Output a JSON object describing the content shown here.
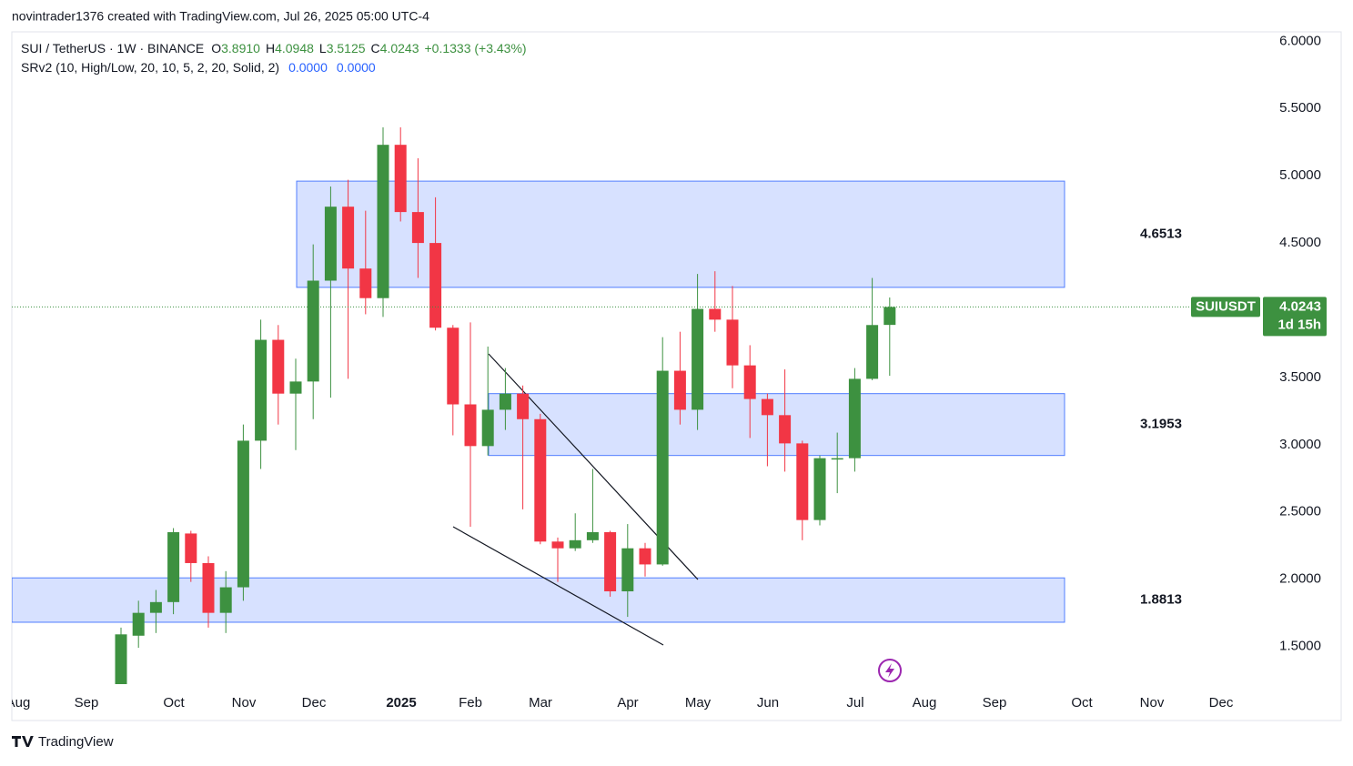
{
  "header": {
    "credit": "novintrader1376 created with TradingView.com, Jul 26, 2025 05:00 UTC-4",
    "symbol": "SUI / TetherUS · 1W · BINANCE",
    "ohlc_labels": [
      "O",
      "H",
      "L",
      "C"
    ],
    "ohlc_values": [
      "3.8910",
      "4.0948",
      "3.5125",
      "4.0243"
    ],
    "change": "+0.1333 (+3.43%)",
    "indicator": "SRv2 (10, High/Low, 20, 10, 5, 2, 20, Solid, 2)",
    "indicator_values": [
      "0.0000",
      "0.0000"
    ]
  },
  "footer": "TradingView",
  "chart_data": {
    "type": "candlestick",
    "symbol_tag": "SUIUSDT",
    "countdown": "1d 15h",
    "up_color": "#3d9140",
    "down_color": "#f23645",
    "zone_color": "#2962ff",
    "ylim": [
      1.22,
      6.07
    ],
    "yticks": [
      {
        "value": 1.5,
        "label": "1.5000"
      },
      {
        "value": 2,
        "label": "2.0000"
      },
      {
        "value": 2.5,
        "label": "2.5000"
      },
      {
        "value": 3,
        "label": "3.0000"
      },
      {
        "value": 3.5,
        "label": "3.5000"
      },
      {
        "value": 4,
        "label": "4.0000"
      },
      {
        "value": 4.5,
        "label": "4.5000"
      },
      {
        "value": 5,
        "label": "5.0000"
      },
      {
        "value": 5.5,
        "label": "5.5000"
      },
      {
        "value": 6,
        "label": "6.0000"
      }
    ],
    "xtick_labels": [
      "Aug",
      "Sep",
      "Oct",
      "Nov",
      "Dec",
      "2025",
      "Feb",
      "Mar",
      "Apr",
      "May",
      "Jun",
      "Jul",
      "Aug",
      "Sep",
      "Oct",
      "Nov",
      "Dec"
    ],
    "open": [
      1.22,
      1.58,
      1.75,
      1.83,
      2.34,
      2.12,
      1.75,
      1.94,
      3.03,
      3.78,
      3.38,
      3.47,
      4.22,
      4.77,
      4.31,
      4.09,
      5.23,
      4.73,
      4.5,
      3.87,
      3.3,
      2.99,
      3.26,
      3.38,
      3.19,
      2.28,
      2.23,
      2.29,
      2.35,
      1.91,
      2.23,
      2.11,
      3.55,
      3.26,
      4.01,
      3.93,
      3.59,
      3.34,
      3.22,
      3.01,
      2.44,
      2.89,
      2.9,
      3.49,
      3.891
    ],
    "high": [
      1.64,
      1.84,
      1.92,
      2.38,
      2.36,
      2.17,
      2.06,
      3.15,
      3.93,
      3.89,
      3.64,
      4.49,
      4.92,
      4.97,
      4.74,
      5.36,
      5.36,
      5.13,
      4.84,
      3.89,
      3.91,
      3.73,
      3.57,
      3.44,
      3.23,
      2.31,
      2.49,
      2.82,
      2.36,
      2.41,
      2.27,
      3.8,
      3.84,
      4.27,
      4.29,
      4.18,
      3.74,
      3.38,
      3.56,
      3.03,
      2.92,
      3.09,
      3.57,
      4.24,
      4.0948
    ],
    "low": [
      1.22,
      1.49,
      1.6,
      1.74,
      1.98,
      1.64,
      1.6,
      1.84,
      2.82,
      3.15,
      2.96,
      3.19,
      3.35,
      3.49,
      3.97,
      3.95,
      4.66,
      4.24,
      3.85,
      3.07,
      2.39,
      2.92,
      3.11,
      2.52,
      2.26,
      1.98,
      2.21,
      2.27,
      1.87,
      1.72,
      2.02,
      2.1,
      3.15,
      3.11,
      3.84,
      3.42,
      3.05,
      2.84,
      2.8,
      2.29,
      2.4,
      2.64,
      2.8,
      3.48,
      3.5125
    ],
    "close": [
      1.59,
      1.75,
      1.83,
      2.35,
      2.12,
      1.75,
      1.94,
      3.03,
      3.78,
      3.38,
      3.47,
      4.22,
      4.77,
      4.31,
      4.09,
      5.23,
      4.73,
      4.5,
      3.87,
      3.3,
      2.99,
      3.26,
      3.38,
      3.19,
      2.28,
      2.23,
      2.29,
      2.35,
      1.91,
      2.23,
      2.11,
      3.55,
      3.26,
      4.01,
      3.93,
      3.59,
      3.34,
      3.22,
      3.01,
      2.44,
      2.9,
      2.9,
      3.49,
      3.89,
      4.0243
    ],
    "zones": [
      {
        "low": 4.17,
        "high": 4.96,
        "label": 4.6513
      },
      {
        "low": 2.92,
        "high": 3.38,
        "label": 3.1953
      },
      {
        "low": 1.68,
        "high": 2.01,
        "label": 1.8813
      }
    ]
  }
}
